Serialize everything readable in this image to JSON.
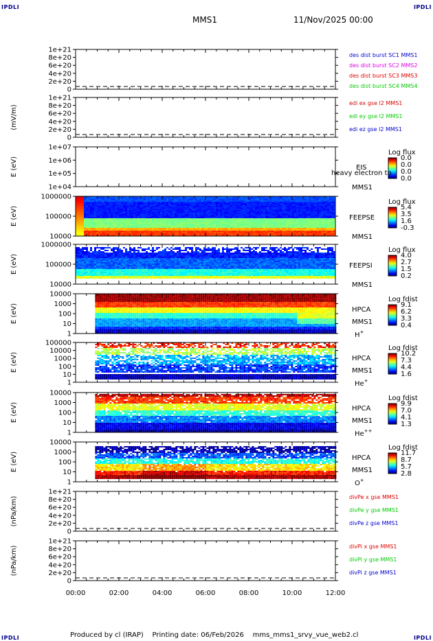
{
  "header": {
    "corner_label": "IPDLI",
    "spacecraft": "MMS1",
    "datetime": "11/Nov/2025 00:00"
  },
  "footer": {
    "credit": "Produced by cl (IRAP)",
    "printing_date": "Printing date: 06/Feb/2026",
    "filename": "mms_mms1_srvy_vue_web2.cl"
  },
  "colors": {
    "blue": "#0000cc",
    "magenta": "#dd00dd",
    "red": "#dd0000",
    "green": "#00cc00"
  },
  "chart_data": [
    {
      "id": "dist",
      "type": "line",
      "ylabel": "",
      "yticks": [
        "1e+21",
        "8e+20",
        "6e+20",
        "4e+20",
        "2e+20",
        "0"
      ],
      "ylim": [
        0,
        1e+21
      ],
      "xlim": [
        "00:00",
        "12:00"
      ],
      "series": [
        {
          "name": "des dist burst SC1 MMS1",
          "color": "#0000cc",
          "values": []
        },
        {
          "name": "des dist burst SC2 MMS2",
          "color": "#dd00dd",
          "values": []
        },
        {
          "name": "des dist burst SC3 MMS3",
          "color": "#dd0000",
          "values": []
        },
        {
          "name": "des dist burst SC4 MMS4",
          "color": "#00cc00",
          "values": []
        }
      ],
      "zero_line": true
    },
    {
      "id": "edi",
      "type": "line",
      "ylabel": "(mV/m)",
      "yticks": [
        "1e+21",
        "8e+20",
        "6e+20",
        "4e+20",
        "2e+20",
        "0"
      ],
      "ylim": [
        0,
        1e+21
      ],
      "series": [
        {
          "name": "edi ex gse l2 MMS1",
          "color": "#dd0000",
          "values": []
        },
        {
          "name": "edi ey gse l2 MMS1",
          "color": "#00cc00",
          "values": []
        },
        {
          "name": "edi ez gse l2 MMS1",
          "color": "#0000cc",
          "values": []
        }
      ],
      "zero_line": true
    },
    {
      "id": "eis",
      "type": "heatmap",
      "ylabel": "E (eV)",
      "yticks": [
        "1e+07",
        "1e+06",
        "1e+05",
        "1e+04"
      ],
      "instrument": [
        "EIS",
        "MMS1"
      ],
      "overlay_label": "heavy electron to",
      "colorbar": {
        "title": "Log flux",
        "ticks": [
          "0.0",
          "0.0",
          "0.0",
          "0.0"
        ]
      },
      "empty": true
    },
    {
      "id": "feepse",
      "type": "heatmap",
      "ylabel": "E (eV)",
      "yticks": [
        "1000000",
        "100000",
        "10000"
      ],
      "instrument": [
        "FEEPSE",
        "MMS1"
      ],
      "colorbar": {
        "title": "Log flux",
        "ticks": [
          "5.4",
          "3.5",
          "1.6",
          "-0.3"
        ]
      },
      "coverage_hours": [
        0,
        12
      ],
      "bands": [
        {
          "from": 0.0,
          "to": 0.12,
          "level": 0.2
        },
        {
          "from": 0.12,
          "to": 0.55,
          "level": 0.15
        },
        {
          "from": 0.55,
          "to": 0.78,
          "level": 0.5
        },
        {
          "from": 0.78,
          "to": 0.85,
          "level": 0.7
        },
        {
          "from": 0.85,
          "to": 1.0,
          "level": 0.82
        }
      ],
      "noise": 0.03
    },
    {
      "id": "feepsi",
      "type": "heatmap",
      "ylabel": "E (eV)",
      "yticks": [
        "1000000",
        "100000",
        "10000"
      ],
      "instrument": [
        "FEEPSI",
        "MMS1"
      ],
      "colorbar": {
        "title": "Log flux",
        "ticks": [
          "4.0",
          "2.7",
          "1.5",
          "0.2"
        ]
      },
      "coverage_hours": [
        0,
        12
      ],
      "bands": [
        {
          "from": 0.05,
          "to": 0.32,
          "level": 0.15
        },
        {
          "from": 0.32,
          "to": 0.62,
          "level": 0.22
        },
        {
          "from": 0.62,
          "to": 0.78,
          "level": 0.4
        },
        {
          "from": 0.78,
          "to": 0.85,
          "level": 0.6
        }
      ],
      "sparse_top": true,
      "noise": 0.05
    },
    {
      "id": "hpca_h",
      "type": "heatmap",
      "ylabel": "E (eV)",
      "yticks": [
        "10000",
        "1000",
        "100",
        "10",
        "1"
      ],
      "instrument": [
        "HPCA",
        "MMS1"
      ],
      "species": "H",
      "species_sup": "+",
      "colorbar": {
        "title": "Log fdist",
        "ticks": [
          "9.1",
          "6.2",
          "3.3",
          "0.4"
        ]
      },
      "coverage_hours": [
        0.9,
        12
      ],
      "bands": [
        {
          "from": 0.0,
          "to": 0.18,
          "level": 0.97
        },
        {
          "from": 0.18,
          "to": 0.32,
          "level": 0.82
        },
        {
          "from": 0.32,
          "to": 0.48,
          "level": 0.62
        },
        {
          "from": 0.48,
          "to": 0.62,
          "level": 0.42
        },
        {
          "from": 0.62,
          "to": 0.8,
          "level": 0.28
        },
        {
          "from": 0.8,
          "to": 0.88,
          "level": 0.16
        },
        {
          "from": 0.88,
          "to": 1.0,
          "level": 0.06
        }
      ],
      "noise": 0.04
    },
    {
      "id": "hpca_he",
      "type": "heatmap",
      "ylabel": "E (eV)",
      "yticks": [
        "100000",
        "10000",
        "1000",
        "100",
        "10",
        "1"
      ],
      "instrument": [
        "HPCA",
        "MMS1"
      ],
      "species": "He",
      "species_sup": "+",
      "colorbar": {
        "title": "Log fdist",
        "ticks": [
          "10.2",
          "7.3",
          "4.4",
          "1.6"
        ]
      },
      "coverage_hours": [
        0.9,
        12
      ],
      "bands": [
        {
          "from": 0.0,
          "to": 0.12,
          "level": 0.85
        },
        {
          "from": 0.12,
          "to": 0.28,
          "level": 0.55
        },
        {
          "from": 0.28,
          "to": 0.55,
          "level": 0.3
        },
        {
          "from": 0.55,
          "to": 0.75,
          "level": 0.18
        },
        {
          "from": 0.78,
          "to": 0.92,
          "level": 0.04
        }
      ],
      "sparse": 0.45,
      "noise": 0.08
    },
    {
      "id": "hpca_hepp",
      "type": "heatmap",
      "ylabel": "E (eV)",
      "yticks": [
        "10000",
        "1000",
        "100",
        "10",
        "1"
      ],
      "instrument": [
        "HPCA",
        "MMS1"
      ],
      "species": "He",
      "species_sup": "++",
      "colorbar": {
        "title": "Log fdist",
        "ticks": [
          "9.9",
          "7.0",
          "4.1",
          "1.3"
        ]
      },
      "coverage_hours": [
        0.9,
        12
      ],
      "bands": [
        {
          "from": 0.02,
          "to": 0.1,
          "level": 0.96
        },
        {
          "from": 0.1,
          "to": 0.25,
          "level": 0.82
        },
        {
          "from": 0.25,
          "to": 0.42,
          "level": 0.6
        },
        {
          "from": 0.42,
          "to": 0.58,
          "level": 0.42
        },
        {
          "from": 0.58,
          "to": 0.75,
          "level": 0.25
        },
        {
          "from": 0.75,
          "to": 0.9,
          "level": 0.1
        },
        {
          "from": 0.9,
          "to": 0.98,
          "level": 0.03
        }
      ],
      "sparse": 0.15,
      "noise": 0.06
    },
    {
      "id": "hpca_o",
      "type": "heatmap",
      "ylabel": "E (eV)",
      "yticks": [
        "10000",
        "1000",
        "100",
        "10",
        "1"
      ],
      "instrument": [
        "HPCA",
        "MMS1"
      ],
      "species": "O",
      "species_sup": "+",
      "colorbar": {
        "title": "Log fdist",
        "ticks": [
          "11.7",
          "8.7",
          "5.7",
          "2.8"
        ]
      },
      "coverage_hours": [
        0.9,
        12
      ],
      "bands": [
        {
          "from": 0.1,
          "to": 0.25,
          "level": 0.04
        },
        {
          "from": 0.25,
          "to": 0.4,
          "level": 0.2
        },
        {
          "from": 0.4,
          "to": 0.55,
          "level": 0.4
        },
        {
          "from": 0.55,
          "to": 0.72,
          "level": 0.65
        },
        {
          "from": 0.72,
          "to": 0.82,
          "level": 0.85
        },
        {
          "from": 0.82,
          "to": 0.9,
          "level": 0.97
        }
      ],
      "sparse": 0.25,
      "noise": 0.07
    },
    {
      "id": "divpe",
      "type": "line",
      "ylabel": "(nPa/km)",
      "yticks": [
        "1e+21",
        "8e+20",
        "6e+20",
        "4e+20",
        "2e+20",
        "0"
      ],
      "ylim": [
        0,
        1e+21
      ],
      "series": [
        {
          "name": "divPe x gse MMS1",
          "color": "#dd0000",
          "values": []
        },
        {
          "name": "divPe y gse MMS1",
          "color": "#00cc00",
          "values": []
        },
        {
          "name": "divPe z gse MMS1",
          "color": "#0000cc",
          "values": []
        }
      ],
      "zero_line": true
    },
    {
      "id": "divpi",
      "type": "line",
      "ylabel": "(nPa/km)",
      "yticks": [
        "1e+21",
        "8e+20",
        "6e+20",
        "4e+20",
        "2e+20",
        "0"
      ],
      "ylim": [
        0,
        1e+21
      ],
      "series": [
        {
          "name": "divPi x gse MMS1",
          "color": "#dd0000",
          "values": []
        },
        {
          "name": "divPi y gse MMS1",
          "color": "#00cc00",
          "values": []
        },
        {
          "name": "divPi z gse MMS1",
          "color": "#0000cc",
          "values": []
        }
      ],
      "zero_line": true
    }
  ],
  "time_axis": {
    "labels": [
      "00:00",
      "02:00",
      "04:00",
      "06:00",
      "08:00",
      "10:00",
      "12:00"
    ],
    "start_hour": 0,
    "end_hour": 12
  }
}
